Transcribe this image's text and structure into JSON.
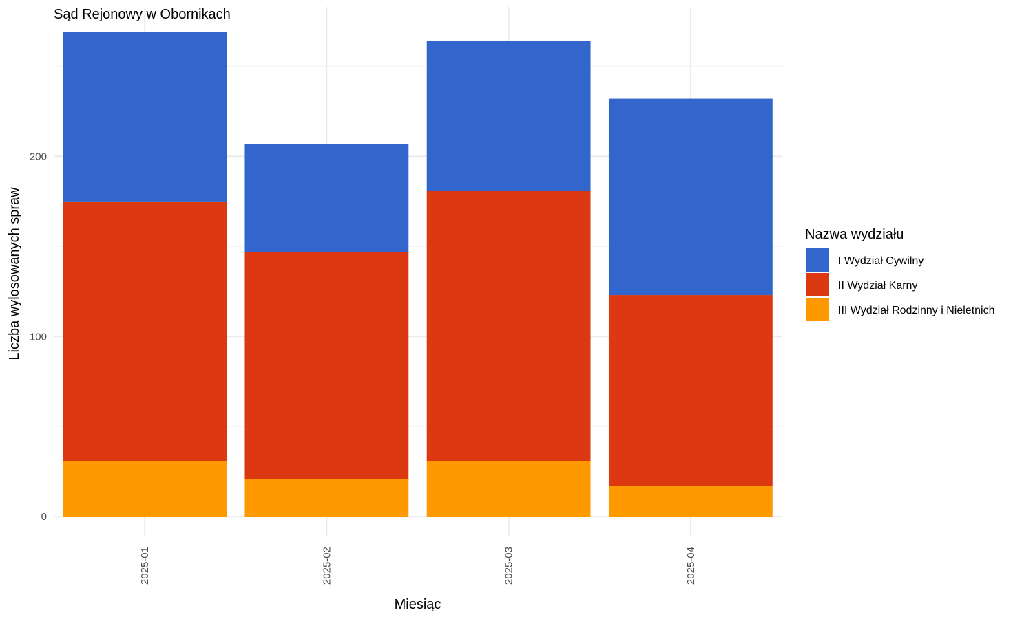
{
  "chart_data": {
    "type": "bar",
    "stacked": true,
    "title": "Sąd Rejonowy w Obornikach",
    "xlabel": "Miesiąc",
    "ylabel": "Liczba wylosowanych spraw",
    "categories": [
      "2025-01",
      "2025-02",
      "2025-03",
      "2025-04"
    ],
    "yticks": [
      0,
      100,
      200
    ],
    "ylim": [
      -11,
      283
    ],
    "grid": true,
    "legend": {
      "title": "Nazwa wydziału",
      "position": "right"
    },
    "series": [
      {
        "name": "III Wydział Rodzinny i Nieletnich",
        "color": "#FF9900",
        "values": [
          31,
          21,
          31,
          17
        ]
      },
      {
        "name": "II Wydział Karny",
        "color": "#DC3912",
        "values": [
          144,
          126,
          150,
          106
        ]
      },
      {
        "name": "I Wydział Cywilny",
        "color": "#3366CC",
        "values": [
          94,
          60,
          83,
          109
        ]
      }
    ],
    "legend_order": [
      "I Wydział Cywilny",
      "II Wydział Karny",
      "III Wydział Rodzinny i Nieletnich"
    ]
  }
}
